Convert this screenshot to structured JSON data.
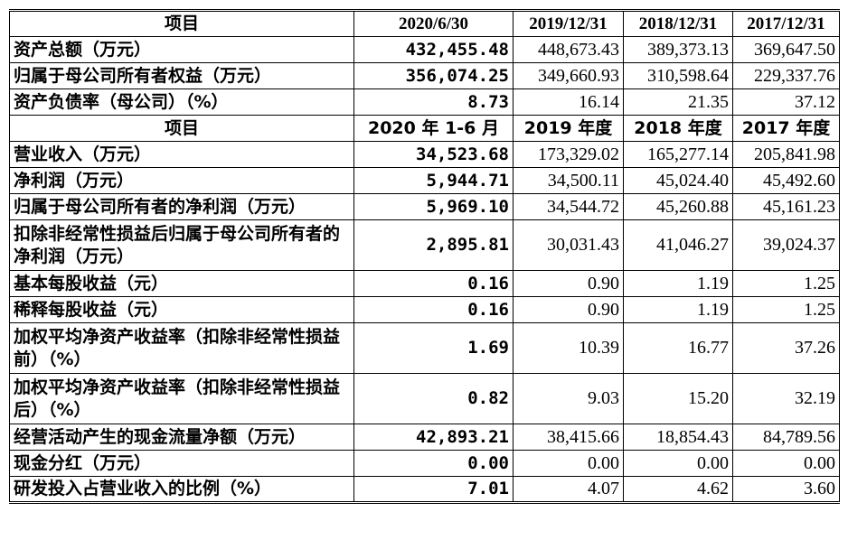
{
  "table": {
    "header1": [
      "项目",
      "2020/6/30",
      "2019/12/31",
      "2018/12/31",
      "2017/12/31"
    ],
    "balance_rows": [
      {
        "label": "资产总额（万元）",
        "values": [
          "432,455.48",
          "448,673.43",
          "389,373.13",
          "369,647.50"
        ]
      },
      {
        "label": "归属于母公司所有者权益（万元）",
        "values": [
          "356,074.25",
          "349,660.93",
          "310,598.64",
          "229,337.76"
        ]
      },
      {
        "label": "资产负债率（母公司）（%）",
        "values": [
          "8.73",
          "16.14",
          "21.35",
          "37.12"
        ]
      }
    ],
    "header2": [
      "项目",
      "2020 年 1-6 月",
      "2019 年度",
      "2018 年度",
      "2017 年度"
    ],
    "income_rows": [
      {
        "label": "营业收入（万元）",
        "values": [
          "34,523.68",
          "173,329.02",
          "165,277.14",
          "205,841.98"
        ]
      },
      {
        "label": "净利润（万元）",
        "values": [
          "5,944.71",
          "34,500.11",
          "45,024.40",
          "45,492.60"
        ]
      },
      {
        "label": "归属于母公司所有者的净利润（万元）",
        "values": [
          "5,969.10",
          "34,544.72",
          "45,260.88",
          "45,161.23"
        ]
      },
      {
        "label": "扣除非经常性损益后归属于母公司所有者的净利润（万元）",
        "values": [
          "2,895.81",
          "30,031.43",
          "41,046.27",
          "39,024.37"
        ]
      },
      {
        "label": "基本每股收益（元）",
        "values": [
          "0.16",
          "0.90",
          "1.19",
          "1.25"
        ]
      },
      {
        "label": "稀释每股收益（元）",
        "values": [
          "0.16",
          "0.90",
          "1.19",
          "1.25"
        ]
      },
      {
        "label": "加权平均净资产收益率（扣除非经常性损益前）（%）",
        "values": [
          "1.69",
          "10.39",
          "16.77",
          "37.26"
        ]
      },
      {
        "label": "加权平均净资产收益率（扣除非经常性损益后）（%）",
        "values": [
          "0.82",
          "9.03",
          "15.20",
          "32.19"
        ]
      },
      {
        "label": "经营活动产生的现金流量净额（万元）",
        "values": [
          "42,893.21",
          "38,415.66",
          "18,854.43",
          "84,789.56"
        ]
      },
      {
        "label": "现金分红（万元）",
        "values": [
          "0.00",
          "0.00",
          "0.00",
          "0.00"
        ]
      },
      {
        "label": "研发投入占营业收入的比例（%）",
        "values": [
          "7.01",
          "4.07",
          "4.62",
          "3.60"
        ]
      }
    ]
  }
}
